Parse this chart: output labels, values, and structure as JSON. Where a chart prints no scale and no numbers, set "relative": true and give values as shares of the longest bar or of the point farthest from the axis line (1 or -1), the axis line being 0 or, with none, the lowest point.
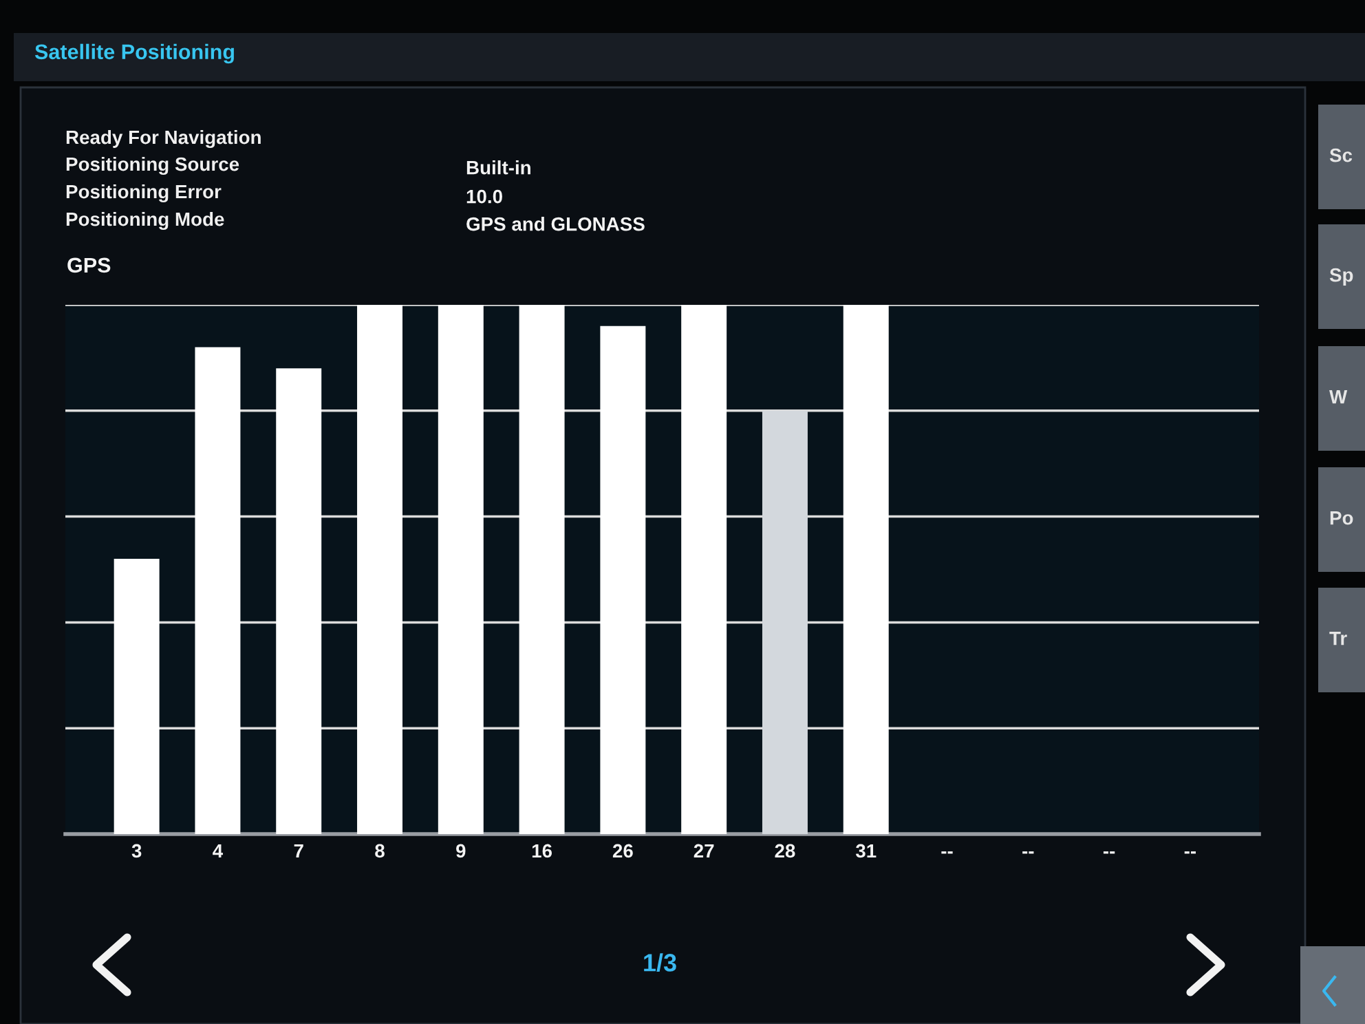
{
  "chart_data": {
    "type": "bar",
    "title": "Satellite Positioning",
    "subtitle": "GPS",
    "categories": [
      "3",
      "4",
      "7",
      "8",
      "9",
      "16",
      "26",
      "27",
      "28",
      "31",
      "--",
      "--",
      "--",
      "--"
    ],
    "values": [
      0.52,
      0.92,
      0.88,
      1,
      1,
      1,
      0.96,
      1,
      0.8,
      1,
      null,
      null,
      null,
      null
    ],
    "colors": [
      "#ffffff",
      "#ffffff",
      "#ffffff",
      "#ffffff",
      "#ffffff",
      "#ffffff",
      "#ffffff",
      "#ffffff",
      "#d3d8dd",
      "#ffffff",
      null,
      null,
      null,
      null
    ],
    "relative": true,
    "grid": "y",
    "annotations": [
      "Ready For Navigation",
      "Positioning Source",
      "Positioning Error",
      "Positioning Mode",
      "Built-in",
      "10.0",
      "GPS and GLONASS",
      "1/3",
      "Sc",
      "Sp",
      "W",
      "Po",
      "Tr"
    ]
  }
}
